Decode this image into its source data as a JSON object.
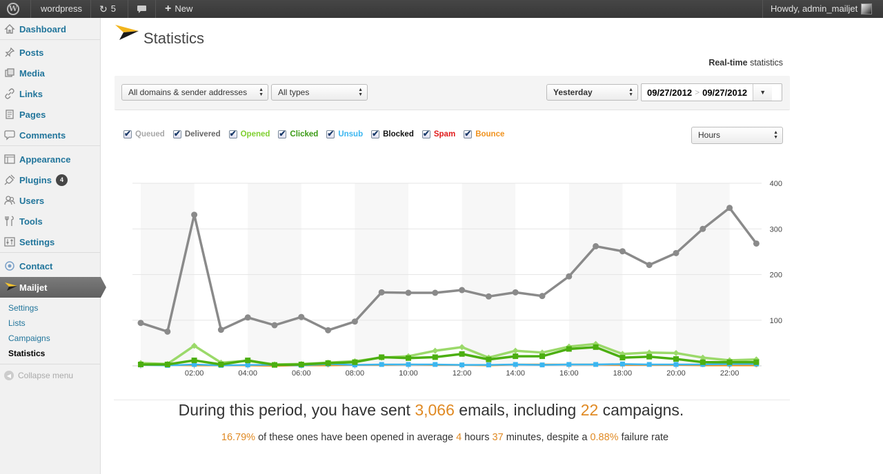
{
  "adminbar": {
    "site_name": "wordpress",
    "updates_count": "5",
    "new_label": "New",
    "howdy": "Howdy, admin_mailjet"
  },
  "sidebar": {
    "items": [
      {
        "label": "Dashboard",
        "icon": "dashboard-icon"
      },
      {
        "label": "Posts",
        "icon": "pin-icon"
      },
      {
        "label": "Media",
        "icon": "media-icon"
      },
      {
        "label": "Links",
        "icon": "link-icon"
      },
      {
        "label": "Pages",
        "icon": "pages-icon"
      },
      {
        "label": "Comments",
        "icon": "comment-icon"
      },
      {
        "label": "Appearance",
        "icon": "appearance-icon"
      },
      {
        "label": "Plugins",
        "icon": "plug-icon",
        "badge": "4"
      },
      {
        "label": "Users",
        "icon": "users-icon"
      },
      {
        "label": "Tools",
        "icon": "tools-icon"
      },
      {
        "label": "Settings",
        "icon": "settings-icon"
      },
      {
        "label": "Contact",
        "icon": "contact-icon"
      }
    ],
    "active": "Mailjet",
    "submenu": [
      "Settings",
      "Lists",
      "Campaigns",
      "Statistics"
    ],
    "collapse": "Collapse menu"
  },
  "page": {
    "title": "Statistics",
    "realtime_bold": "Real-time",
    "realtime_rest": " statistics"
  },
  "filters": {
    "domains": "All domains & sender addresses",
    "types": "All types",
    "period": "Yesterday",
    "date_from": "09/27/2012",
    "date_to": "09/27/2012",
    "granularity": "Hours"
  },
  "legend": [
    {
      "label": "Queued",
      "color": "#a8a8a8"
    },
    {
      "label": "Delivered",
      "color": "#666666"
    },
    {
      "label": "Opened",
      "color": "#7fcf2f"
    },
    {
      "label": "Clicked",
      "color": "#3a9a14"
    },
    {
      "label": "Unsub",
      "color": "#3bb6f0"
    },
    {
      "label": "Blocked",
      "color": "#111111"
    },
    {
      "label": "Spam",
      "color": "#e01a1a"
    },
    {
      "label": "Bounce",
      "color": "#f0921e"
    }
  ],
  "chart_data": {
    "type": "line",
    "x": [
      0,
      1,
      2,
      3,
      4,
      5,
      6,
      7,
      8,
      9,
      10,
      11,
      12,
      13,
      14,
      15,
      16,
      17,
      18,
      19,
      20,
      21,
      22,
      23
    ],
    "x_tick_labels": [
      "02:00",
      "04:00",
      "06:00",
      "08:00",
      "10:00",
      "12:00",
      "14:00",
      "16:00",
      "18:00",
      "20:00",
      "22:00"
    ],
    "x_tick_positions": [
      2,
      4,
      6,
      8,
      10,
      12,
      14,
      16,
      18,
      20,
      22
    ],
    "ylim": [
      0,
      400
    ],
    "y_ticks": [
      100,
      200,
      300,
      400
    ],
    "series": [
      {
        "name": "Delivered",
        "color": "#8a8a8a",
        "values": [
          94,
          75,
          331,
          79,
          106,
          89,
          107,
          78,
          97,
          161,
          160,
          160,
          166,
          152,
          161,
          153,
          196,
          262,
          251,
          221,
          247,
          300,
          346,
          268
        ]
      },
      {
        "name": "Opened",
        "color": "#9bd96a",
        "values": [
          6,
          4,
          44,
          7,
          11,
          3,
          4,
          7,
          10,
          18,
          21,
          33,
          41,
          18,
          33,
          29,
          42,
          48,
          26,
          29,
          28,
          18,
          12,
          14
        ]
      },
      {
        "name": "Clicked",
        "color": "#4caf10",
        "values": [
          3,
          3,
          12,
          3,
          12,
          2,
          3,
          6,
          8,
          19,
          17,
          19,
          26,
          14,
          21,
          21,
          37,
          41,
          18,
          20,
          15,
          8,
          8,
          8
        ]
      },
      {
        "name": "Unsub",
        "color": "#3bb6f0",
        "values": [
          2,
          1,
          3,
          1,
          2,
          2,
          1,
          4,
          2,
          3,
          3,
          3,
          2,
          2,
          3,
          2,
          3,
          3,
          4,
          3,
          3,
          3,
          4,
          4
        ]
      },
      {
        "name": "Bounce",
        "color": "#f0921e",
        "values": [
          5,
          2,
          1,
          1,
          1,
          0,
          1,
          1,
          2,
          2,
          3,
          2,
          2,
          1,
          3,
          3,
          3,
          3,
          2,
          2,
          2,
          1,
          1,
          1
        ]
      }
    ]
  },
  "summary": {
    "line1_a": "During this period, you have sent ",
    "emails": "3,066",
    "line1_b": " emails, including ",
    "campaigns": "22",
    "line1_c": " campaigns.",
    "open_rate": "16.79%",
    "line2_a": " of these ones have been opened in average ",
    "hours": "4",
    "line2_b": " hours ",
    "minutes": "37",
    "line2_c": " minutes, despite a ",
    "failure": "0.88%",
    "line2_d": " failure rate"
  }
}
